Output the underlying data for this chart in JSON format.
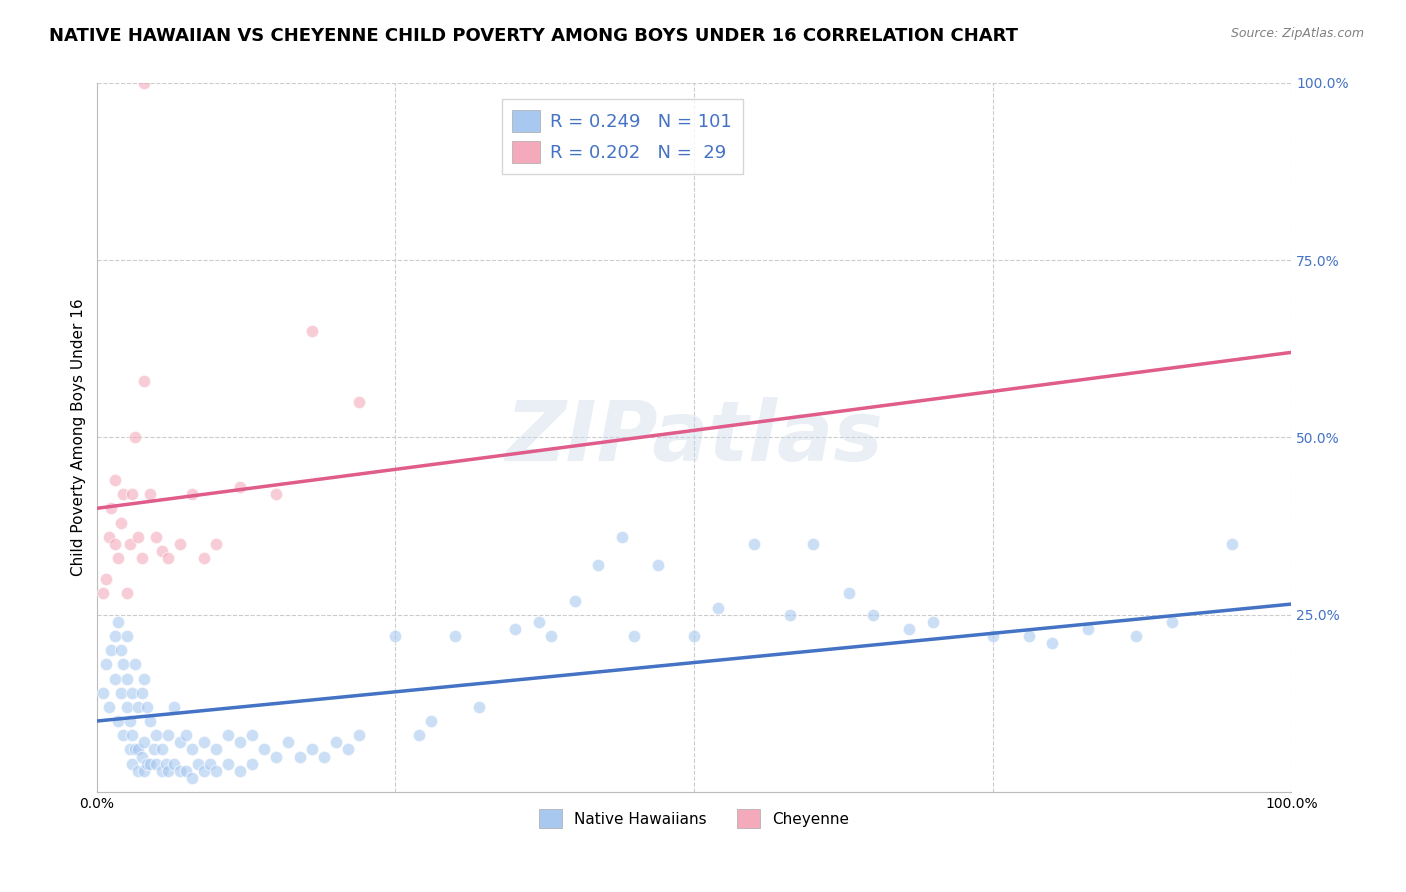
{
  "title": "NATIVE HAWAIIAN VS CHEYENNE CHILD POVERTY AMONG BOYS UNDER 16 CORRELATION CHART",
  "source": "Source: ZipAtlas.com",
  "ylabel": "Child Poverty Among Boys Under 16",
  "xlim": [
    0.0,
    1.0
  ],
  "ylim": [
    0.0,
    1.0
  ],
  "blue_color": "#A8C8F0",
  "pink_color": "#F4AABB",
  "blue_line_color": "#4472C4",
  "pink_line_color": "#E05C8A",
  "watermark": "ZIPatlas",
  "blue_scatter_x": [
    0.005,
    0.008,
    0.01,
    0.012,
    0.015,
    0.015,
    0.018,
    0.018,
    0.02,
    0.02,
    0.022,
    0.022,
    0.025,
    0.025,
    0.025,
    0.028,
    0.028,
    0.03,
    0.03,
    0.03,
    0.032,
    0.032,
    0.035,
    0.035,
    0.035,
    0.038,
    0.038,
    0.04,
    0.04,
    0.04,
    0.042,
    0.042,
    0.045,
    0.045,
    0.048,
    0.05,
    0.05,
    0.055,
    0.055,
    0.058,
    0.06,
    0.06,
    0.065,
    0.065,
    0.07,
    0.07,
    0.075,
    0.075,
    0.08,
    0.08,
    0.085,
    0.09,
    0.09,
    0.095,
    0.1,
    0.1,
    0.11,
    0.11,
    0.12,
    0.12,
    0.13,
    0.13,
    0.14,
    0.15,
    0.16,
    0.17,
    0.18,
    0.19,
    0.2,
    0.21,
    0.22,
    0.25,
    0.27,
    0.28,
    0.3,
    0.32,
    0.35,
    0.37,
    0.38,
    0.4,
    0.42,
    0.44,
    0.45,
    0.47,
    0.5,
    0.52,
    0.55,
    0.58,
    0.6,
    0.63,
    0.65,
    0.68,
    0.7,
    0.75,
    0.78,
    0.8,
    0.83,
    0.87,
    0.9,
    0.95
  ],
  "blue_scatter_y": [
    0.14,
    0.18,
    0.12,
    0.2,
    0.16,
    0.22,
    0.1,
    0.24,
    0.14,
    0.2,
    0.08,
    0.18,
    0.12,
    0.16,
    0.22,
    0.06,
    0.1,
    0.04,
    0.08,
    0.14,
    0.06,
    0.18,
    0.03,
    0.06,
    0.12,
    0.05,
    0.14,
    0.03,
    0.07,
    0.16,
    0.04,
    0.12,
    0.04,
    0.1,
    0.06,
    0.04,
    0.08,
    0.03,
    0.06,
    0.04,
    0.03,
    0.08,
    0.04,
    0.12,
    0.03,
    0.07,
    0.03,
    0.08,
    0.02,
    0.06,
    0.04,
    0.03,
    0.07,
    0.04,
    0.03,
    0.06,
    0.04,
    0.08,
    0.03,
    0.07,
    0.04,
    0.08,
    0.06,
    0.05,
    0.07,
    0.05,
    0.06,
    0.05,
    0.07,
    0.06,
    0.08,
    0.22,
    0.08,
    0.1,
    0.22,
    0.12,
    0.23,
    0.24,
    0.22,
    0.27,
    0.32,
    0.36,
    0.22,
    0.32,
    0.22,
    0.26,
    0.35,
    0.25,
    0.35,
    0.28,
    0.25,
    0.23,
    0.24,
    0.22,
    0.22,
    0.21,
    0.23,
    0.22,
    0.24,
    0.35
  ],
  "pink_scatter_x": [
    0.005,
    0.008,
    0.01,
    0.012,
    0.015,
    0.015,
    0.018,
    0.02,
    0.022,
    0.025,
    0.028,
    0.03,
    0.032,
    0.035,
    0.038,
    0.04,
    0.04,
    0.045,
    0.05,
    0.055,
    0.06,
    0.07,
    0.08,
    0.09,
    0.1,
    0.12,
    0.15,
    0.18,
    0.22
  ],
  "pink_scatter_y": [
    0.28,
    0.3,
    0.36,
    0.4,
    0.35,
    0.44,
    0.33,
    0.38,
    0.42,
    0.28,
    0.35,
    0.42,
    0.5,
    0.36,
    0.33,
    0.58,
    1.0,
    0.42,
    0.36,
    0.34,
    0.33,
    0.35,
    0.42,
    0.33,
    0.35,
    0.43,
    0.42,
    0.65,
    0.55
  ],
  "blue_line_y_start": 0.1,
  "blue_line_y_end": 0.265,
  "pink_line_y_start": 0.4,
  "pink_line_y_end": 0.62,
  "grid_color": "#CCCCCC",
  "background_color": "#FFFFFF",
  "title_fontsize": 13,
  "axis_label_fontsize": 11,
  "tick_fontsize": 10,
  "scatter_size": 80,
  "scatter_alpha": 0.6
}
